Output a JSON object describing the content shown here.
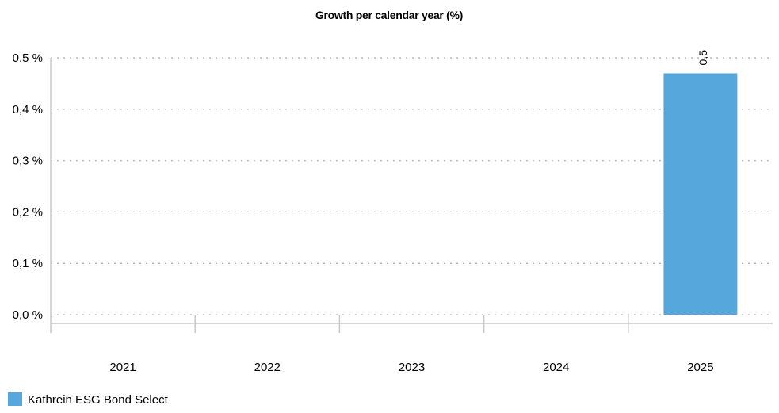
{
  "chart_data": {
    "type": "bar",
    "title": "Growth per calendar year (%)",
    "categories": [
      "2021",
      "2022",
      "2023",
      "2024",
      "2025"
    ],
    "series": [
      {
        "name": "Kathrein ESG Bond Select",
        "values": [
          null,
          null,
          null,
          null,
          0.47
        ],
        "color": "#55a7dc",
        "data_labels": [
          "",
          "",
          "",
          "",
          "0,5"
        ]
      }
    ],
    "y_ticks": [
      "0,0 %",
      "0,1 %",
      "0,2 %",
      "0,3 %",
      "0,4 %",
      "0,5 %"
    ],
    "ylim": [
      0,
      0.5
    ],
    "xlabel": "",
    "ylabel": "",
    "grid": "horizontal-dashed",
    "legend_position": "bottom-left"
  }
}
